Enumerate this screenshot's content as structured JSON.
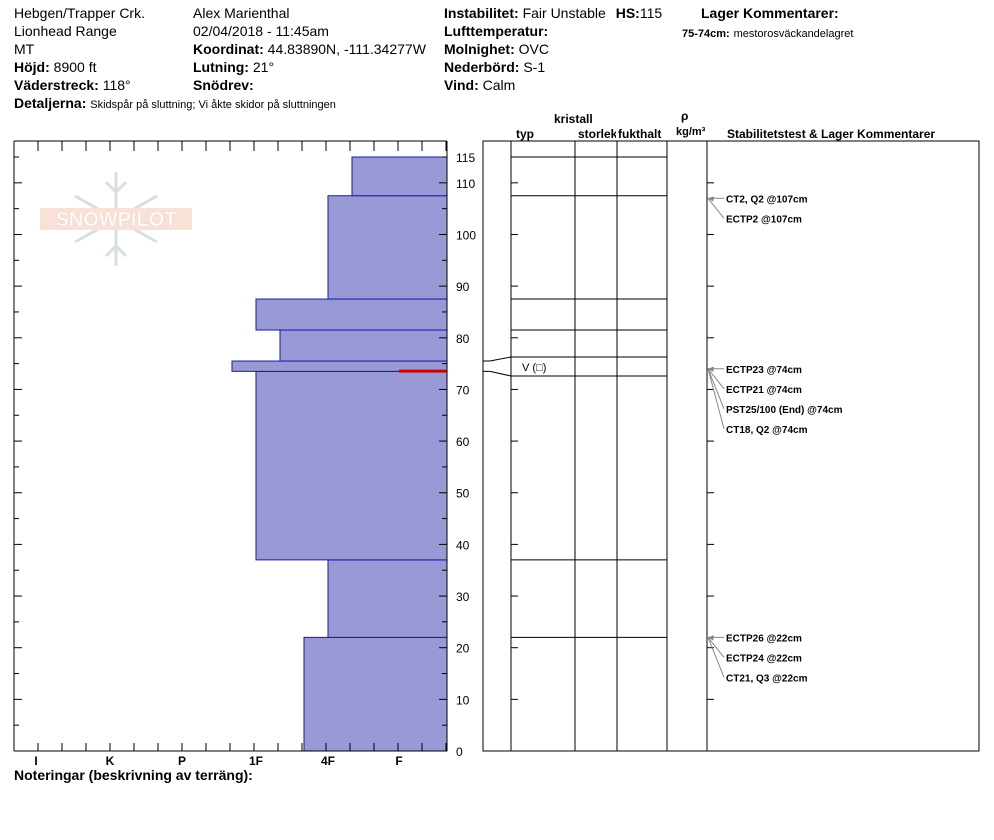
{
  "header": {
    "location": "Hebgen/Trapper Crk.",
    "range": "Lionhead Range",
    "state": "MT",
    "elevation_label": "Höjd:",
    "elevation": "8900 ft",
    "aspect_label": "Väderstreck:",
    "aspect": "118°",
    "details_label": "Detaljerna:",
    "details": "Skidspår på sluttning;  Vi åkte skidor på sluttningen",
    "observer": "Alex Marienthal",
    "datetime": "02/04/2018 - 11:45am",
    "coord_label": "Koordinat:",
    "coord": "44.83890N, -111.34277W",
    "slope_label": "Lutning:",
    "slope": "21°",
    "drift_label": "Snödrev:",
    "drift": "",
    "instability_label": "Instabilitet:",
    "instability": "Fair Unstable",
    "hs_label": "HS:",
    "hs": "115",
    "air_temp_label": "Lufttemperatur:",
    "air_temp": "",
    "cloud_label": "Molnighet:",
    "cloud": "OVC",
    "precip_label": "Nederbörd:",
    "precip": "S-1",
    "wind_label": "Vind:",
    "wind": "Calm",
    "layer_comments_label": "Lager Kommentarer:",
    "layer_comment_depth": "75-74cm:",
    "layer_comment_text": "mestorosväckandelagret"
  },
  "logo_text": "SNOWPILOT",
  "notes_label": "Noteringar (beskrivning av terräng):",
  "columns": {
    "crystal": "kristall",
    "type": "typ",
    "size": "storlek",
    "moisture": "fukthalt",
    "rho": "ρ",
    "density_unit": "kg/m³",
    "stability": "Stabilitetstest & Lager Kommentarer"
  },
  "chart_data": {
    "type": "bar",
    "orientation": "horizontal",
    "ylabel": "",
    "ylim": [
      0,
      115
    ],
    "yticks": [
      0,
      10,
      20,
      30,
      40,
      50,
      60,
      70,
      80,
      90,
      100,
      110,
      115
    ],
    "hardness_categories": [
      "I",
      "K",
      "P",
      "1F",
      "4F",
      "F"
    ],
    "layers": [
      {
        "bottom": 0,
        "top": 22,
        "hardness": "4F+"
      },
      {
        "bottom": 22,
        "top": 37,
        "hardness": "4F"
      },
      {
        "bottom": 37,
        "top": 73.5,
        "hardness": "1F"
      },
      {
        "bottom": 73.5,
        "top": 75.5,
        "hardness": "1F+"
      },
      {
        "bottom": 75.5,
        "top": 81.5,
        "hardness": "1F-"
      },
      {
        "bottom": 81.5,
        "top": 87.5,
        "hardness": "1F"
      },
      {
        "bottom": 87.5,
        "top": 107.5,
        "hardness": "4F"
      },
      {
        "bottom": 107.5,
        "top": 115,
        "hardness": "4F-"
      }
    ],
    "weak_layer": {
      "depth_top": 75,
      "depth_bottom": 74,
      "color": "#cc0000"
    },
    "bar_color": "#9999d6",
    "bar_edge_color": "#1a1aaa",
    "crystal_entries": [
      {
        "bottom": 73.5,
        "top": 75.5,
        "type": "V (□)"
      }
    ],
    "stability_tests": [
      {
        "depth": 107,
        "label": "CT2, Q2 @107cm"
      },
      {
        "depth": 107,
        "label": "ECTP2 @107cm"
      },
      {
        "depth": 74,
        "label": "ECTP23 @74cm"
      },
      {
        "depth": 74,
        "label": "ECTP21 @74cm"
      },
      {
        "depth": 74,
        "label": "PST25/100 (End) @74cm"
      },
      {
        "depth": 74,
        "label": "CT18, Q2 @74cm"
      },
      {
        "depth": 22,
        "label": "ECTP26 @22cm"
      },
      {
        "depth": 22,
        "label": "ECTP24 @22cm"
      },
      {
        "depth": 22,
        "label": "CT21, Q3 @22cm"
      }
    ]
  }
}
